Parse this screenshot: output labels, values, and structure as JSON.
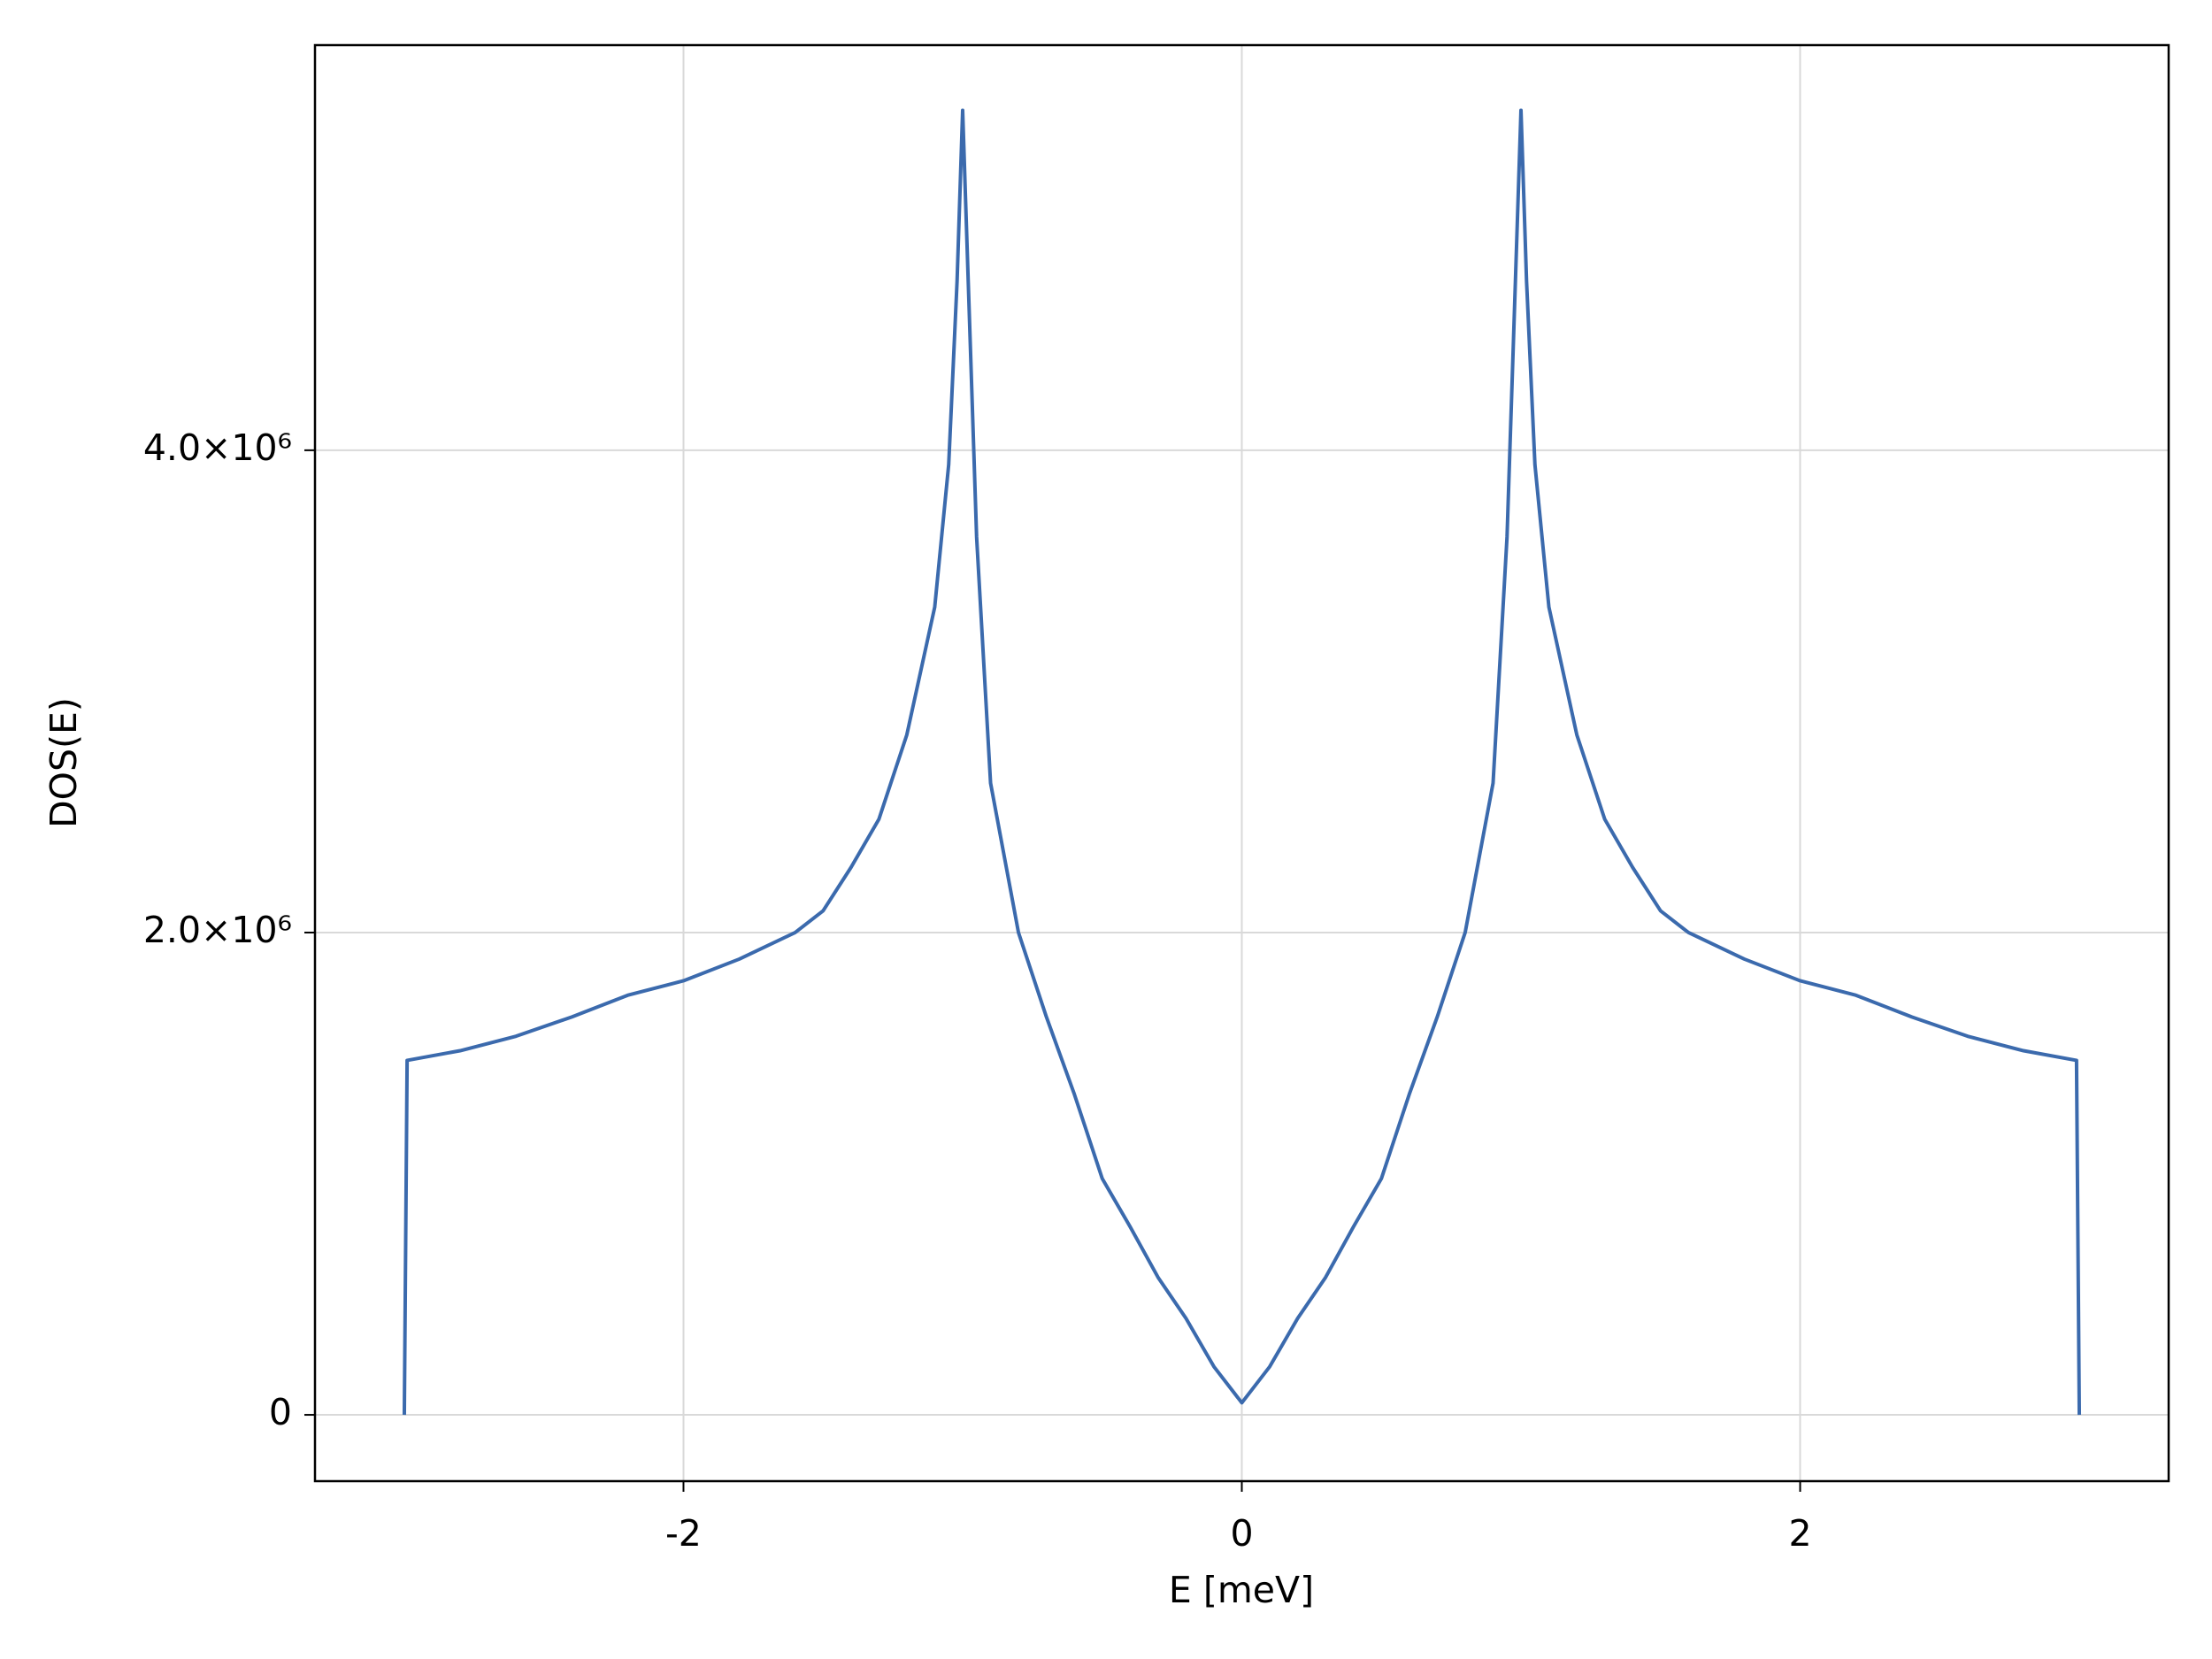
{
  "chart_data": {
    "type": "line",
    "x_label": "E [meV]",
    "y_label": "DOS(E)",
    "x": [
      -3.0,
      -2.99,
      -2.8,
      -2.6,
      -2.4,
      -2.2,
      -2.0,
      -1.8,
      -1.6,
      -1.5,
      -1.4,
      -1.3,
      -1.2,
      -1.1,
      -1.05,
      -1.02,
      -1.0,
      -0.98,
      -0.95,
      -0.9,
      -0.8,
      -0.7,
      -0.6,
      -0.5,
      -0.4,
      -0.3,
      -0.2,
      -0.1,
      0.0,
      0.1,
      0.2,
      0.3,
      0.4,
      0.5,
      0.6,
      0.7,
      0.8,
      0.9,
      0.95,
      0.98,
      1.0,
      1.02,
      1.05,
      1.1,
      1.2,
      1.3,
      1.4,
      1.5,
      1.6,
      1.8,
      2.0,
      2.2,
      2.4,
      2.6,
      2.8,
      2.99,
      3.0
    ],
    "series": [
      {
        "color": "#3b6aad",
        "values": [
          0,
          1470000,
          1510000,
          1570000,
          1650000,
          1740000,
          1800000,
          1890000,
          2000000,
          2090000,
          2270000,
          2470000,
          2820000,
          3350000,
          3940000,
          4700000,
          5410000,
          4700000,
          3640000,
          2620000,
          2000000,
          1650000,
          1330000,
          980000,
          780000,
          570000,
          400000,
          200000,
          50000,
          200000,
          400000,
          570000,
          780000,
          980000,
          1330000,
          1650000,
          2000000,
          2620000,
          3640000,
          4700000,
          5410000,
          4700000,
          3940000,
          3350000,
          2820000,
          2470000,
          2270000,
          2090000,
          2000000,
          1890000,
          1800000,
          1740000,
          1650000,
          1570000,
          1510000,
          1470000,
          0
        ]
      }
    ],
    "xlim": [
      -3.32,
      3.32
    ],
    "xticks": [
      -2,
      0,
      2
    ],
    "ylim": [
      -275000,
      5680000
    ],
    "yticks": [
      0,
      {
        "value": 2000000,
        "label": "2.0×10⁶"
      },
      {
        "value": 4000000,
        "label": "4.0×10⁶"
      }
    ],
    "grid": true
  }
}
